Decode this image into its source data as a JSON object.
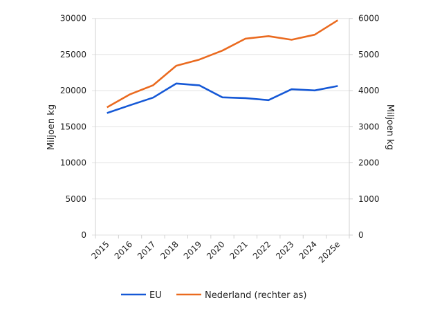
{
  "chart_data": {
    "type": "line",
    "categories": [
      "2015",
      "2016",
      "2017",
      "2018",
      "2019",
      "2020",
      "2021",
      "2022",
      "2023",
      "2024",
      "2025e"
    ],
    "series": [
      {
        "name": "EU",
        "axis": "left",
        "color": "#1558d6",
        "values": [
          16900,
          17980,
          19040,
          20990,
          20740,
          19070,
          18970,
          18690,
          20190,
          20030,
          20640
        ]
      },
      {
        "name": "Nederland (rechter as)",
        "axis": "right",
        "color": "#ea6a1f",
        "values": [
          3540,
          3900,
          4150,
          4690,
          4860,
          5110,
          5440,
          5510,
          5410,
          5550,
          5950
        ]
      }
    ],
    "ylabel": "Miljoen kg",
    "ylabel_right": "Miljoen kg",
    "ylim": [
      0,
      30000
    ],
    "ylim_right": [
      0,
      6000
    ],
    "yticks": [
      0,
      5000,
      10000,
      15000,
      20000,
      25000,
      30000
    ],
    "yticks_right": [
      0,
      1000,
      2000,
      3000,
      4000,
      5000,
      6000
    ],
    "grid": true,
    "legend": "bottom"
  }
}
